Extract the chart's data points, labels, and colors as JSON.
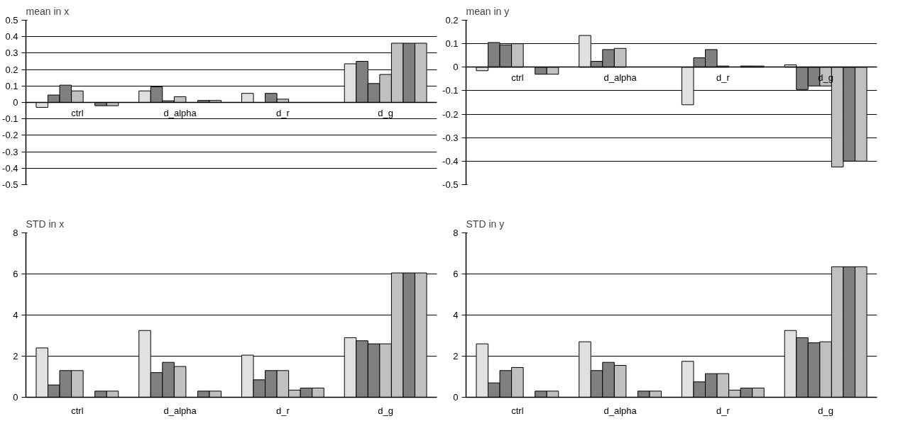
{
  "chart_data": [
    {
      "type": "bar",
      "title": "mean in x",
      "categories": [
        "ctrl",
        "d_alpha",
        "d_r",
        "d_g"
      ],
      "ylim": [
        -0.5,
        0.5
      ],
      "yticks": [
        -0.5,
        -0.4,
        -0.3,
        -0.2,
        -0.1,
        0,
        0.1,
        0.2,
        0.3,
        0.4,
        0.5
      ],
      "grid": "y",
      "series": [
        {
          "color": "#e0e0e0",
          "values": [
            -0.03,
            0.07,
            0.055,
            0.235
          ]
        },
        {
          "color": "#808080",
          "values": [
            0.045,
            0.095,
            null,
            0.25
          ]
        },
        {
          "color": "#808080",
          "values": [
            0.105,
            0.01,
            0.055,
            0.115
          ]
        },
        {
          "color": "#c0c0c0",
          "values": [
            0.07,
            0.035,
            0.02,
            0.17
          ]
        },
        {
          "color": "#c0c0c0",
          "values": [
            null,
            null,
            null,
            0.36
          ]
        },
        {
          "color": "#808080",
          "values": [
            -0.02,
            0.012,
            null,
            0.36
          ]
        },
        {
          "color": "#c0c0c0",
          "values": [
            -0.02,
            0.012,
            null,
            0.36
          ]
        }
      ]
    },
    {
      "type": "bar",
      "title": "mean in y",
      "categories": [
        "ctrl",
        "d_alpha",
        "d_r",
        "d_g"
      ],
      "ylim": [
        -0.5,
        0.2
      ],
      "yticks": [
        -0.5,
        -0.4,
        -0.3,
        -0.2,
        -0.1,
        0,
        0.1,
        0.2
      ],
      "grid": "y",
      "series": [
        {
          "color": "#e0e0e0",
          "values": [
            -0.015,
            0.135,
            -0.16,
            0.01
          ]
        },
        {
          "color": "#808080",
          "values": [
            0.105,
            0.025,
            0.04,
            -0.095
          ]
        },
        {
          "color": "#808080",
          "values": [
            0.095,
            0.075,
            0.075,
            -0.08
          ]
        },
        {
          "color": "#c0c0c0",
          "values": [
            0.1,
            0.08,
            0.005,
            -0.08
          ]
        },
        {
          "color": "#c0c0c0",
          "values": [
            null,
            null,
            null,
            -0.425
          ]
        },
        {
          "color": "#808080",
          "values": [
            -0.03,
            null,
            0.005,
            -0.4
          ]
        },
        {
          "color": "#c0c0c0",
          "values": [
            -0.03,
            null,
            0.005,
            -0.4
          ]
        }
      ]
    },
    {
      "type": "bar",
      "title": "STD in x",
      "categories": [
        "ctrl",
        "d_alpha",
        "d_r",
        "d_g"
      ],
      "ylim": [
        0,
        8
      ],
      "yticks": [
        0,
        2,
        4,
        6,
        8
      ],
      "grid": "y",
      "series": [
        {
          "color": "#e0e0e0",
          "values": [
            2.4,
            3.25,
            2.05,
            2.9
          ]
        },
        {
          "color": "#808080",
          "values": [
            0.6,
            1.2,
            0.85,
            2.75
          ]
        },
        {
          "color": "#808080",
          "values": [
            1.3,
            1.7,
            1.3,
            2.6
          ]
        },
        {
          "color": "#c0c0c0",
          "values": [
            1.3,
            1.5,
            1.3,
            2.6
          ]
        },
        {
          "color": "#c0c0c0",
          "values": [
            null,
            null,
            0.35,
            6.05
          ]
        },
        {
          "color": "#808080",
          "values": [
            0.3,
            0.3,
            0.45,
            6.05
          ]
        },
        {
          "color": "#c0c0c0",
          "values": [
            0.3,
            0.3,
            0.45,
            6.05
          ]
        }
      ]
    },
    {
      "type": "bar",
      "title": "STD in y",
      "categories": [
        "ctrl",
        "d_alpha",
        "d_r",
        "d_g"
      ],
      "ylim": [
        0,
        8
      ],
      "yticks": [
        0,
        2,
        4,
        6,
        8
      ],
      "grid": "y",
      "series": [
        {
          "color": "#e0e0e0",
          "values": [
            2.6,
            2.7,
            1.75,
            3.25
          ]
        },
        {
          "color": "#808080",
          "values": [
            0.7,
            1.3,
            0.75,
            2.9
          ]
        },
        {
          "color": "#808080",
          "values": [
            1.3,
            1.7,
            1.15,
            2.65
          ]
        },
        {
          "color": "#c0c0c0",
          "values": [
            1.45,
            1.55,
            1.15,
            2.7
          ]
        },
        {
          "color": "#c0c0c0",
          "values": [
            null,
            null,
            0.35,
            6.35
          ]
        },
        {
          "color": "#808080",
          "values": [
            0.3,
            0.3,
            0.45,
            6.35
          ]
        },
        {
          "color": "#c0c0c0",
          "values": [
            0.3,
            0.3,
            0.45,
            6.35
          ]
        }
      ]
    }
  ]
}
